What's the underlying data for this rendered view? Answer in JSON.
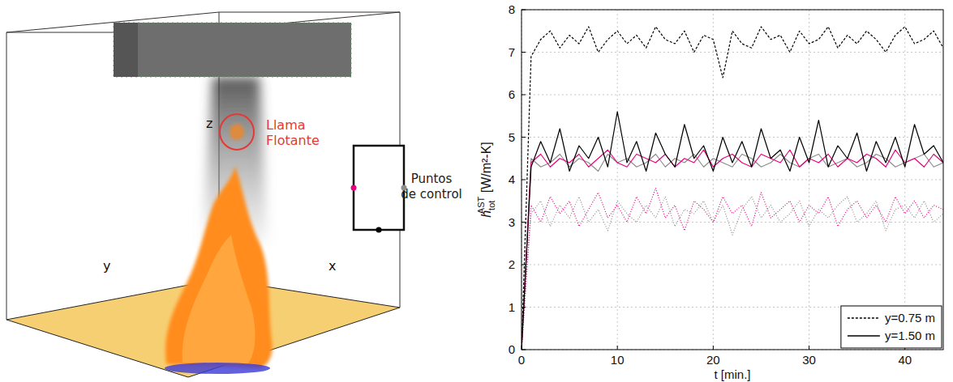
{
  "chart_data": {
    "type": "line",
    "xlabel": "t [min.]",
    "ylabel": {
      "base": "h",
      "sub": "tot",
      "sup": "AST",
      "unit": "[W/m²-K]"
    },
    "x": [
      0,
      1,
      2,
      3,
      4,
      5,
      6,
      7,
      8,
      9,
      10,
      11,
      12,
      13,
      14,
      15,
      16,
      17,
      18,
      19,
      20,
      21,
      22,
      23,
      24,
      25,
      26,
      27,
      28,
      29,
      30,
      31,
      32,
      33,
      34,
      35,
      36,
      37,
      38,
      39,
      40,
      41,
      42,
      43,
      44
    ],
    "xlim": [
      0,
      44
    ],
    "xticks": [
      0,
      10,
      20,
      30,
      40
    ],
    "ylim": [
      0,
      8
    ],
    "yticks": [
      0,
      1,
      2,
      3,
      4,
      5,
      6,
      7,
      8
    ],
    "grid": true,
    "legend": "lower right",
    "series": [
      {
        "name": "y=0.75 m",
        "color": "#000000",
        "line_style": "dashed",
        "values": [
          0,
          6.9,
          7.3,
          7.5,
          7.1,
          7.4,
          7.2,
          7.6,
          7.0,
          7.3,
          7.5,
          7.2,
          7.4,
          7.1,
          7.6,
          7.3,
          7.2,
          7.5,
          7.0,
          7.4,
          7.3,
          6.4,
          7.5,
          7.2,
          7.1,
          7.6,
          7.3,
          7.4,
          7.0,
          7.5,
          7.2,
          7.3,
          7.6,
          7.1,
          7.4,
          7.2,
          7.5,
          7.3,
          7.0,
          7.4,
          7.6,
          7.2,
          7.3,
          7.5,
          7.1
        ]
      },
      {
        "name": "y=1.50 m",
        "color": "#000000",
        "line_style": "solid",
        "values": [
          0,
          4.3,
          4.9,
          4.4,
          5.2,
          4.2,
          4.8,
          4.5,
          5.0,
          4.3,
          5.6,
          4.4,
          4.9,
          4.2,
          5.1,
          4.6,
          4.3,
          5.3,
          4.5,
          4.8,
          4.2,
          5.0,
          4.4,
          4.9,
          4.3,
          5.2,
          4.5,
          4.7,
          4.2,
          5.0,
          4.4,
          5.4,
          4.3,
          4.8,
          4.5,
          5.1,
          4.2,
          4.9,
          4.4,
          5.0,
          4.3,
          5.3,
          4.6,
          4.8,
          4.4
        ]
      },
      {
        "color": "#e8007f",
        "line_style": "solid",
        "values": [
          0,
          4.4,
          4.6,
          4.3,
          4.5,
          4.4,
          4.6,
          4.3,
          4.5,
          4.7,
          4.4,
          4.3,
          4.6,
          4.5,
          4.4,
          4.6,
          4.3,
          4.5,
          4.4,
          4.7,
          4.3,
          4.5,
          4.6,
          4.4,
          4.3,
          4.6,
          4.5,
          4.4,
          4.7,
          4.3,
          4.5,
          4.4,
          4.6,
          4.3,
          4.5,
          4.4,
          4.6,
          4.5,
          4.3,
          4.7,
          4.4,
          4.5,
          4.3,
          4.6,
          4.4
        ]
      },
      {
        "color": "#8c8c8c",
        "line_style": "solid",
        "values": [
          0,
          4.5,
          4.3,
          4.4,
          4.6,
          4.3,
          4.5,
          4.4,
          4.2,
          4.6,
          4.4,
          4.5,
          4.3,
          4.4,
          4.6,
          4.3,
          4.5,
          4.4,
          4.6,
          4.3,
          4.5,
          4.4,
          4.3,
          4.6,
          4.5,
          4.3,
          4.4,
          4.6,
          4.4,
          4.3,
          4.5,
          4.6,
          4.3,
          4.4,
          4.5,
          4.3,
          4.4,
          4.6,
          4.5,
          4.3,
          4.4,
          4.5,
          4.6,
          4.3,
          4.4
        ]
      },
      {
        "color": "#e8007f",
        "line_style": "dotted",
        "values": [
          0,
          3.4,
          3.0,
          3.6,
          3.2,
          3.5,
          2.9,
          3.3,
          3.7,
          3.1,
          3.4,
          3.0,
          3.6,
          3.2,
          3.8,
          3.1,
          3.4,
          2.8,
          3.5,
          3.3,
          3.0,
          3.6,
          3.2,
          3.4,
          2.9,
          3.7,
          3.1,
          3.3,
          3.5,
          3.0,
          3.4,
          3.2,
          3.6,
          2.9,
          3.3,
          3.5,
          3.1,
          3.4,
          3.0,
          3.6,
          3.2,
          3.5,
          3.1,
          3.4,
          3.3
        ]
      },
      {
        "color": "#8c8c8c",
        "line_style": "dotted",
        "values": [
          0,
          3.2,
          3.5,
          2.9,
          3.4,
          3.1,
          3.6,
          3.0,
          3.3,
          2.8,
          3.5,
          3.2,
          3.0,
          3.4,
          3.1,
          3.6,
          2.9,
          3.3,
          3.2,
          3.5,
          3.0,
          3.4,
          2.7,
          3.3,
          3.6,
          3.1,
          3.4,
          3.0,
          3.2,
          3.5,
          2.9,
          3.3,
          3.1,
          3.4,
          3.6,
          3.0,
          3.2,
          3.5,
          2.8,
          3.3,
          3.4,
          3.1,
          3.5,
          3.0,
          3.2
        ]
      }
    ]
  },
  "diagram": {
    "axis_x": "x",
    "axis_y": "y",
    "axis_z": "z",
    "flame_label": "Llama Flotante",
    "control_points_label": "Puntos de control"
  }
}
